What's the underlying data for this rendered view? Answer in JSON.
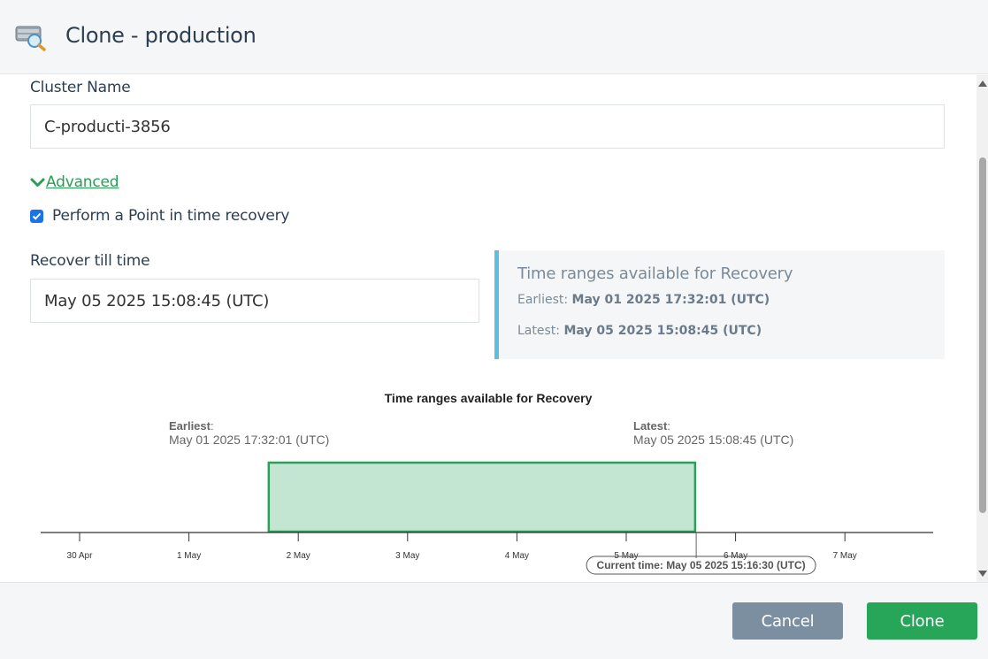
{
  "dialog": {
    "title": "Clone - production",
    "icon": "database-search-icon"
  },
  "form": {
    "cluster_name_label": "Cluster Name",
    "cluster_name_value": "C-producti-3856",
    "advanced_label": "Advanced",
    "pitr_label": "Perform a Point in time recovery",
    "pitr_checked": true,
    "recover_till_label": "Recover till time",
    "recover_till_value": "May 05 2025 15:08:45 (UTC)"
  },
  "recovery_info": {
    "title": "Time ranges available for Recovery",
    "earliest_label": "Earliest:",
    "earliest_value": "May 01 2025 17:32:01 (UTC)",
    "latest_label": "Latest:",
    "latest_value": "May 05 2025 15:08:45 (UTC)"
  },
  "chart_data": {
    "type": "timeline",
    "title": "Time ranges available for Recovery",
    "earliest_label": "Earliest",
    "earliest_text": "May 01 2025 17:32:01 (UTC)",
    "latest_label": "Latest",
    "latest_text": "May 05 2025 15:08:45 (UTC)",
    "ticks": [
      "30 Apr",
      "1 May",
      "2 May",
      "3 May",
      "4 May",
      "5 May",
      "6 May",
      "7 May"
    ],
    "range_start_day": 1.73,
    "range_end_day": 5.63,
    "current_time_day": 5.64,
    "current_time_label": "Current time: May 05 2025 15:16:30 (UTC)",
    "colors": {
      "fill": "#c2e6d2",
      "stroke": "#2e9e5b",
      "axis": "#333333"
    }
  },
  "footer": {
    "cancel_label": "Cancel",
    "clone_label": "Clone"
  }
}
